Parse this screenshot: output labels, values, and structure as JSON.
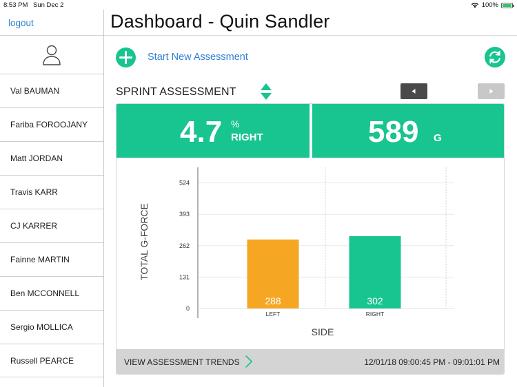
{
  "status_bar": {
    "time": "8:53 PM",
    "date": "Sun Dec 2",
    "battery": "100%"
  },
  "sidebar": {
    "logout_label": "logout",
    "athletes": [
      "Val BAUMAN",
      "Fariba FOROOJANY",
      "Matt JORDAN",
      "Travis KARR",
      "CJ KARRER",
      "Fainne MARTIN",
      "Ben MCCONNELL",
      "Sergio MOLLICA",
      "Russell PEARCE"
    ]
  },
  "header": {
    "title": "Dashboard - Quin Sandler"
  },
  "actions": {
    "start_new_label": "Start New Assessment"
  },
  "assessment": {
    "label": "SPRINT ASSESSMENT",
    "asymmetry_value": "4.7",
    "asymmetry_unit": "%",
    "asymmetry_side": "RIGHT",
    "total_value": "589",
    "total_unit": "G"
  },
  "chart_data": {
    "type": "bar",
    "categories": [
      "LEFT",
      "RIGHT"
    ],
    "values": [
      288,
      302
    ],
    "colors": [
      "#f5a623",
      "#18c48f"
    ],
    "ylabel": "TOTAL G-FORCE",
    "xlabel": "SIDE",
    "yticks": [
      0,
      131,
      262,
      393,
      524
    ],
    "ylim": [
      0,
      589
    ]
  },
  "footer": {
    "trends_label": "VIEW ASSESSMENT TRENDS",
    "date_range": "12/01/18 09:00:45 PM - 09:01:01 PM"
  },
  "colors": {
    "accent": "#18c48f",
    "link": "#2f7fd6",
    "left_bar": "#f5a623"
  }
}
